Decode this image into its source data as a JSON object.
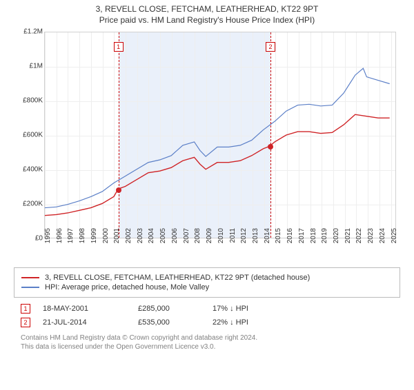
{
  "title_line1": "3, REVELL CLOSE, FETCHAM, LEATHERHEAD, KT22 9PT",
  "title_line2": "Price paid vs. HM Land Registry's House Price Index (HPI)",
  "chart": {
    "type": "line",
    "background_color": "#ffffff",
    "grid_color": "#eeeeee",
    "border_color": "#d0d0d0",
    "highlight_band_color": "#eaf0fa",
    "marker_color": "#cf2326",
    "marker_box_border": "#cc0000",
    "xlim": [
      1995,
      2025.5
    ],
    "ylim": [
      0,
      1200000
    ],
    "ytick_step": 200000,
    "ytick_labels": [
      "£0",
      "£200K",
      "£400K",
      "£600K",
      "£800K",
      "£1M",
      "£1.2M"
    ],
    "xticks": [
      1995,
      1996,
      1997,
      1998,
      1999,
      2000,
      2001,
      2002,
      2003,
      2004,
      2005,
      2006,
      2007,
      2008,
      2009,
      2010,
      2011,
      2012,
      2013,
      2014,
      2015,
      2016,
      2017,
      2018,
      2019,
      2020,
      2021,
      2022,
      2023,
      2024,
      2025
    ],
    "label_fontsize": 10,
    "highlight_band": {
      "start": 2001.38,
      "end": 2014.56
    },
    "vertical_markers": [
      {
        "x": 2001.38,
        "num": "1"
      },
      {
        "x": 2014.56,
        "num": "2"
      }
    ],
    "series": [
      {
        "name": "property",
        "label": "3, REVELL CLOSE, FETCHAM, LEATHERHEAD, KT22 9PT (detached house)",
        "color": "#cf2326",
        "line_width": 1.4,
        "data": [
          [
            1995,
            130000
          ],
          [
            1996,
            135000
          ],
          [
            1997,
            145000
          ],
          [
            1998,
            160000
          ],
          [
            1999,
            175000
          ],
          [
            2000,
            200000
          ],
          [
            2001,
            240000
          ],
          [
            2001.38,
            285000
          ],
          [
            2002,
            300000
          ],
          [
            2003,
            340000
          ],
          [
            2004,
            380000
          ],
          [
            2005,
            390000
          ],
          [
            2006,
            410000
          ],
          [
            2007,
            450000
          ],
          [
            2008,
            470000
          ],
          [
            2008.5,
            430000
          ],
          [
            2009,
            400000
          ],
          [
            2010,
            440000
          ],
          [
            2011,
            440000
          ],
          [
            2012,
            450000
          ],
          [
            2013,
            480000
          ],
          [
            2014,
            520000
          ],
          [
            2014.56,
            535000
          ],
          [
            2015,
            560000
          ],
          [
            2016,
            600000
          ],
          [
            2017,
            620000
          ],
          [
            2018,
            620000
          ],
          [
            2019,
            610000
          ],
          [
            2020,
            615000
          ],
          [
            2021,
            660000
          ],
          [
            2022,
            720000
          ],
          [
            2023,
            710000
          ],
          [
            2024,
            700000
          ],
          [
            2025,
            700000
          ]
        ]
      },
      {
        "name": "hpi",
        "label": "HPI: Average price, detached house, Mole Valley",
        "color": "#5b7fc7",
        "line_width": 1.2,
        "data": [
          [
            1995,
            175000
          ],
          [
            1996,
            180000
          ],
          [
            1997,
            195000
          ],
          [
            1998,
            215000
          ],
          [
            1999,
            240000
          ],
          [
            2000,
            270000
          ],
          [
            2001,
            320000
          ],
          [
            2002,
            360000
          ],
          [
            2003,
            400000
          ],
          [
            2004,
            440000
          ],
          [
            2005,
            455000
          ],
          [
            2006,
            480000
          ],
          [
            2007,
            540000
          ],
          [
            2008,
            560000
          ],
          [
            2008.5,
            510000
          ],
          [
            2009,
            475000
          ],
          [
            2010,
            530000
          ],
          [
            2011,
            530000
          ],
          [
            2012,
            540000
          ],
          [
            2013,
            570000
          ],
          [
            2014,
            630000
          ],
          [
            2015,
            680000
          ],
          [
            2016,
            740000
          ],
          [
            2017,
            775000
          ],
          [
            2018,
            780000
          ],
          [
            2019,
            770000
          ],
          [
            2020,
            775000
          ],
          [
            2021,
            845000
          ],
          [
            2022,
            950000
          ],
          [
            2022.7,
            990000
          ],
          [
            2023,
            940000
          ],
          [
            2024,
            920000
          ],
          [
            2025,
            900000
          ]
        ]
      }
    ],
    "price_points": [
      {
        "x": 2001.38,
        "y": 285000
      },
      {
        "x": 2014.56,
        "y": 535000
      }
    ]
  },
  "legend": {
    "items": [
      {
        "color": "#cf2326",
        "label": "3, REVELL CLOSE, FETCHAM, LEATHERHEAD, KT22 9PT (detached house)"
      },
      {
        "color": "#5b7fc7",
        "label": "HPI: Average price, detached house, Mole Valley"
      }
    ]
  },
  "transactions": [
    {
      "num": "1",
      "date": "18-MAY-2001",
      "price": "£285,000",
      "delta": "17% ↓ HPI"
    },
    {
      "num": "2",
      "date": "21-JUL-2014",
      "price": "£535,000",
      "delta": "22% ↓ HPI"
    }
  ],
  "footnote_line1": "Contains HM Land Registry data © Crown copyright and database right 2024.",
  "footnote_line2": "This data is licensed under the Open Government Licence v3.0."
}
